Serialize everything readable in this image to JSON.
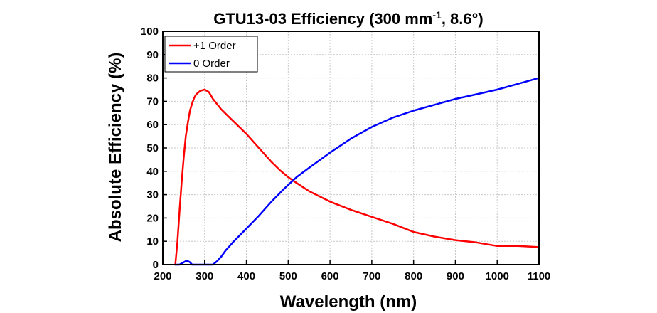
{
  "chart_data": {
    "type": "line",
    "title_main": "GTU13-03 Efficiency (300 mm",
    "title_sup": "-1",
    "title_end": ", 8.6°)",
    "xlabel": "Wavelength (nm)",
    "ylabel": "Absolute Efficiency (%)",
    "xlim": [
      200,
      1100
    ],
    "ylim": [
      0,
      100
    ],
    "xticks": [
      200,
      300,
      400,
      500,
      600,
      700,
      800,
      900,
      1000,
      1100
    ],
    "yticks": [
      0,
      10,
      20,
      30,
      40,
      50,
      60,
      70,
      80,
      90,
      100
    ],
    "grid": true,
    "legend_position": "top-left",
    "series": [
      {
        "name": "+1 Order",
        "color": "#ff0000",
        "x": [
          230,
          235,
          240,
          245,
          250,
          255,
          260,
          265,
          270,
          275,
          280,
          290,
          300,
          310,
          320,
          340,
          360,
          380,
          400,
          420,
          440,
          460,
          480,
          500,
          520,
          550,
          600,
          650,
          700,
          750,
          800,
          850,
          900,
          950,
          1000,
          1050,
          1100
        ],
        "y": [
          0,
          10,
          23,
          35,
          46,
          55,
          61,
          66,
          69,
          71.5,
          73,
          74.5,
          75,
          74,
          71,
          66.5,
          63,
          59.5,
          56,
          52,
          48,
          44,
          40.5,
          37.5,
          35,
          31.5,
          27,
          23.5,
          20.5,
          17.5,
          14,
          12,
          10.5,
          9.5,
          8,
          8,
          7.5
        ]
      },
      {
        "name": "0 Order",
        "color": "#0000ff",
        "x": [
          230,
          240,
          250,
          255,
          260,
          265,
          270,
          280,
          300,
          320,
          330,
          340,
          350,
          370,
          400,
          430,
          460,
          490,
          520,
          550,
          600,
          650,
          700,
          750,
          800,
          850,
          900,
          950,
          1000,
          1050,
          1100
        ],
        "y": [
          0,
          0,
          1,
          1.5,
          1.5,
          1,
          0,
          0,
          0,
          0,
          1.5,
          3.5,
          6,
          10,
          15.5,
          21,
          27,
          32.5,
          37.5,
          41.5,
          48,
          54,
          59,
          63,
          66,
          68.5,
          71,
          73,
          75,
          77.5,
          80
        ]
      }
    ]
  }
}
